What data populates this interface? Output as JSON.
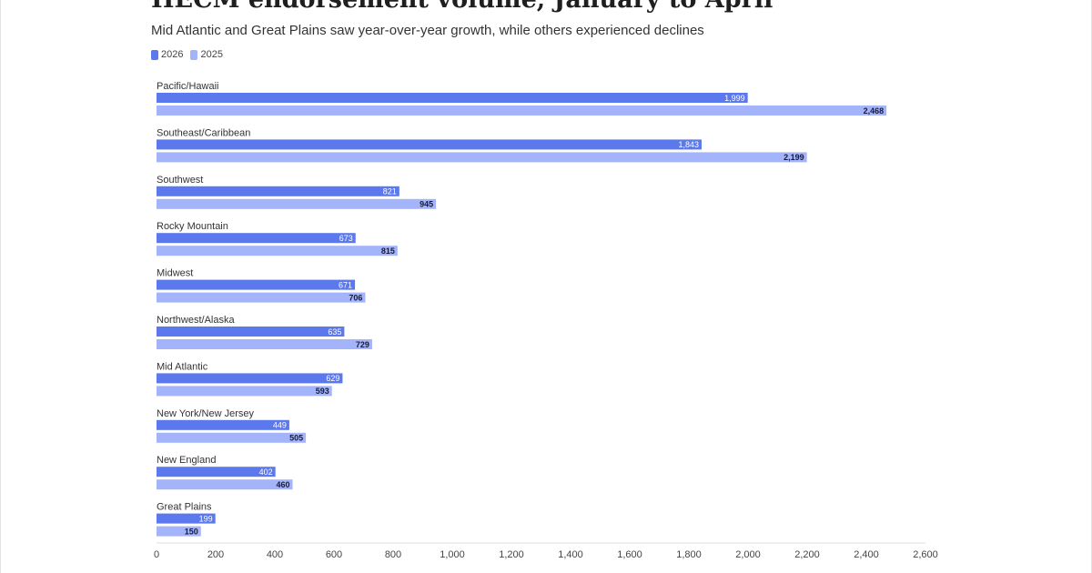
{
  "chart_data": {
    "type": "bar",
    "orientation": "horizontal",
    "title": "HECM endorsement volume, January to April",
    "subtitle": "Mid Atlantic and Great Plains saw year-over-year growth, while others experienced declines",
    "categories": [
      "Pacific/Hawaii",
      "Southeast/Caribbean",
      "Southwest",
      "Rocky Mountain",
      "Midwest",
      "Northwest/Alaska",
      "Mid Atlantic",
      "New York/New Jersey",
      "New England",
      "Great Plains"
    ],
    "series": [
      {
        "name": "2026",
        "color": "#5b78ed",
        "values": [
          1999,
          1843,
          821,
          673,
          671,
          635,
          629,
          449,
          402,
          199
        ],
        "labels": [
          "1,999",
          "1,843",
          "821",
          "673",
          "671",
          "635",
          "629",
          "449",
          "402",
          "199"
        ]
      },
      {
        "name": "2025",
        "color": "#a3b4fb",
        "values": [
          2468,
          2199,
          945,
          815,
          706,
          729,
          593,
          505,
          460,
          150
        ],
        "labels": [
          "2,468",
          "2,199",
          "945",
          "815",
          "706",
          "729",
          "593",
          "505",
          "460",
          "150"
        ]
      }
    ],
    "xlim": [
      0,
      2600
    ],
    "xticks": [
      0,
      200,
      400,
      600,
      800,
      1000,
      1200,
      1400,
      1600,
      1800,
      2000,
      2200,
      2400,
      2600
    ],
    "xtick_labels": [
      "0",
      "200",
      "400",
      "600",
      "800",
      "1,000",
      "1,200",
      "1,400",
      "1,600",
      "1,800",
      "2,000",
      "2,200",
      "2,400",
      "2,600"
    ],
    "grid": false,
    "legend_position": "top-left"
  }
}
